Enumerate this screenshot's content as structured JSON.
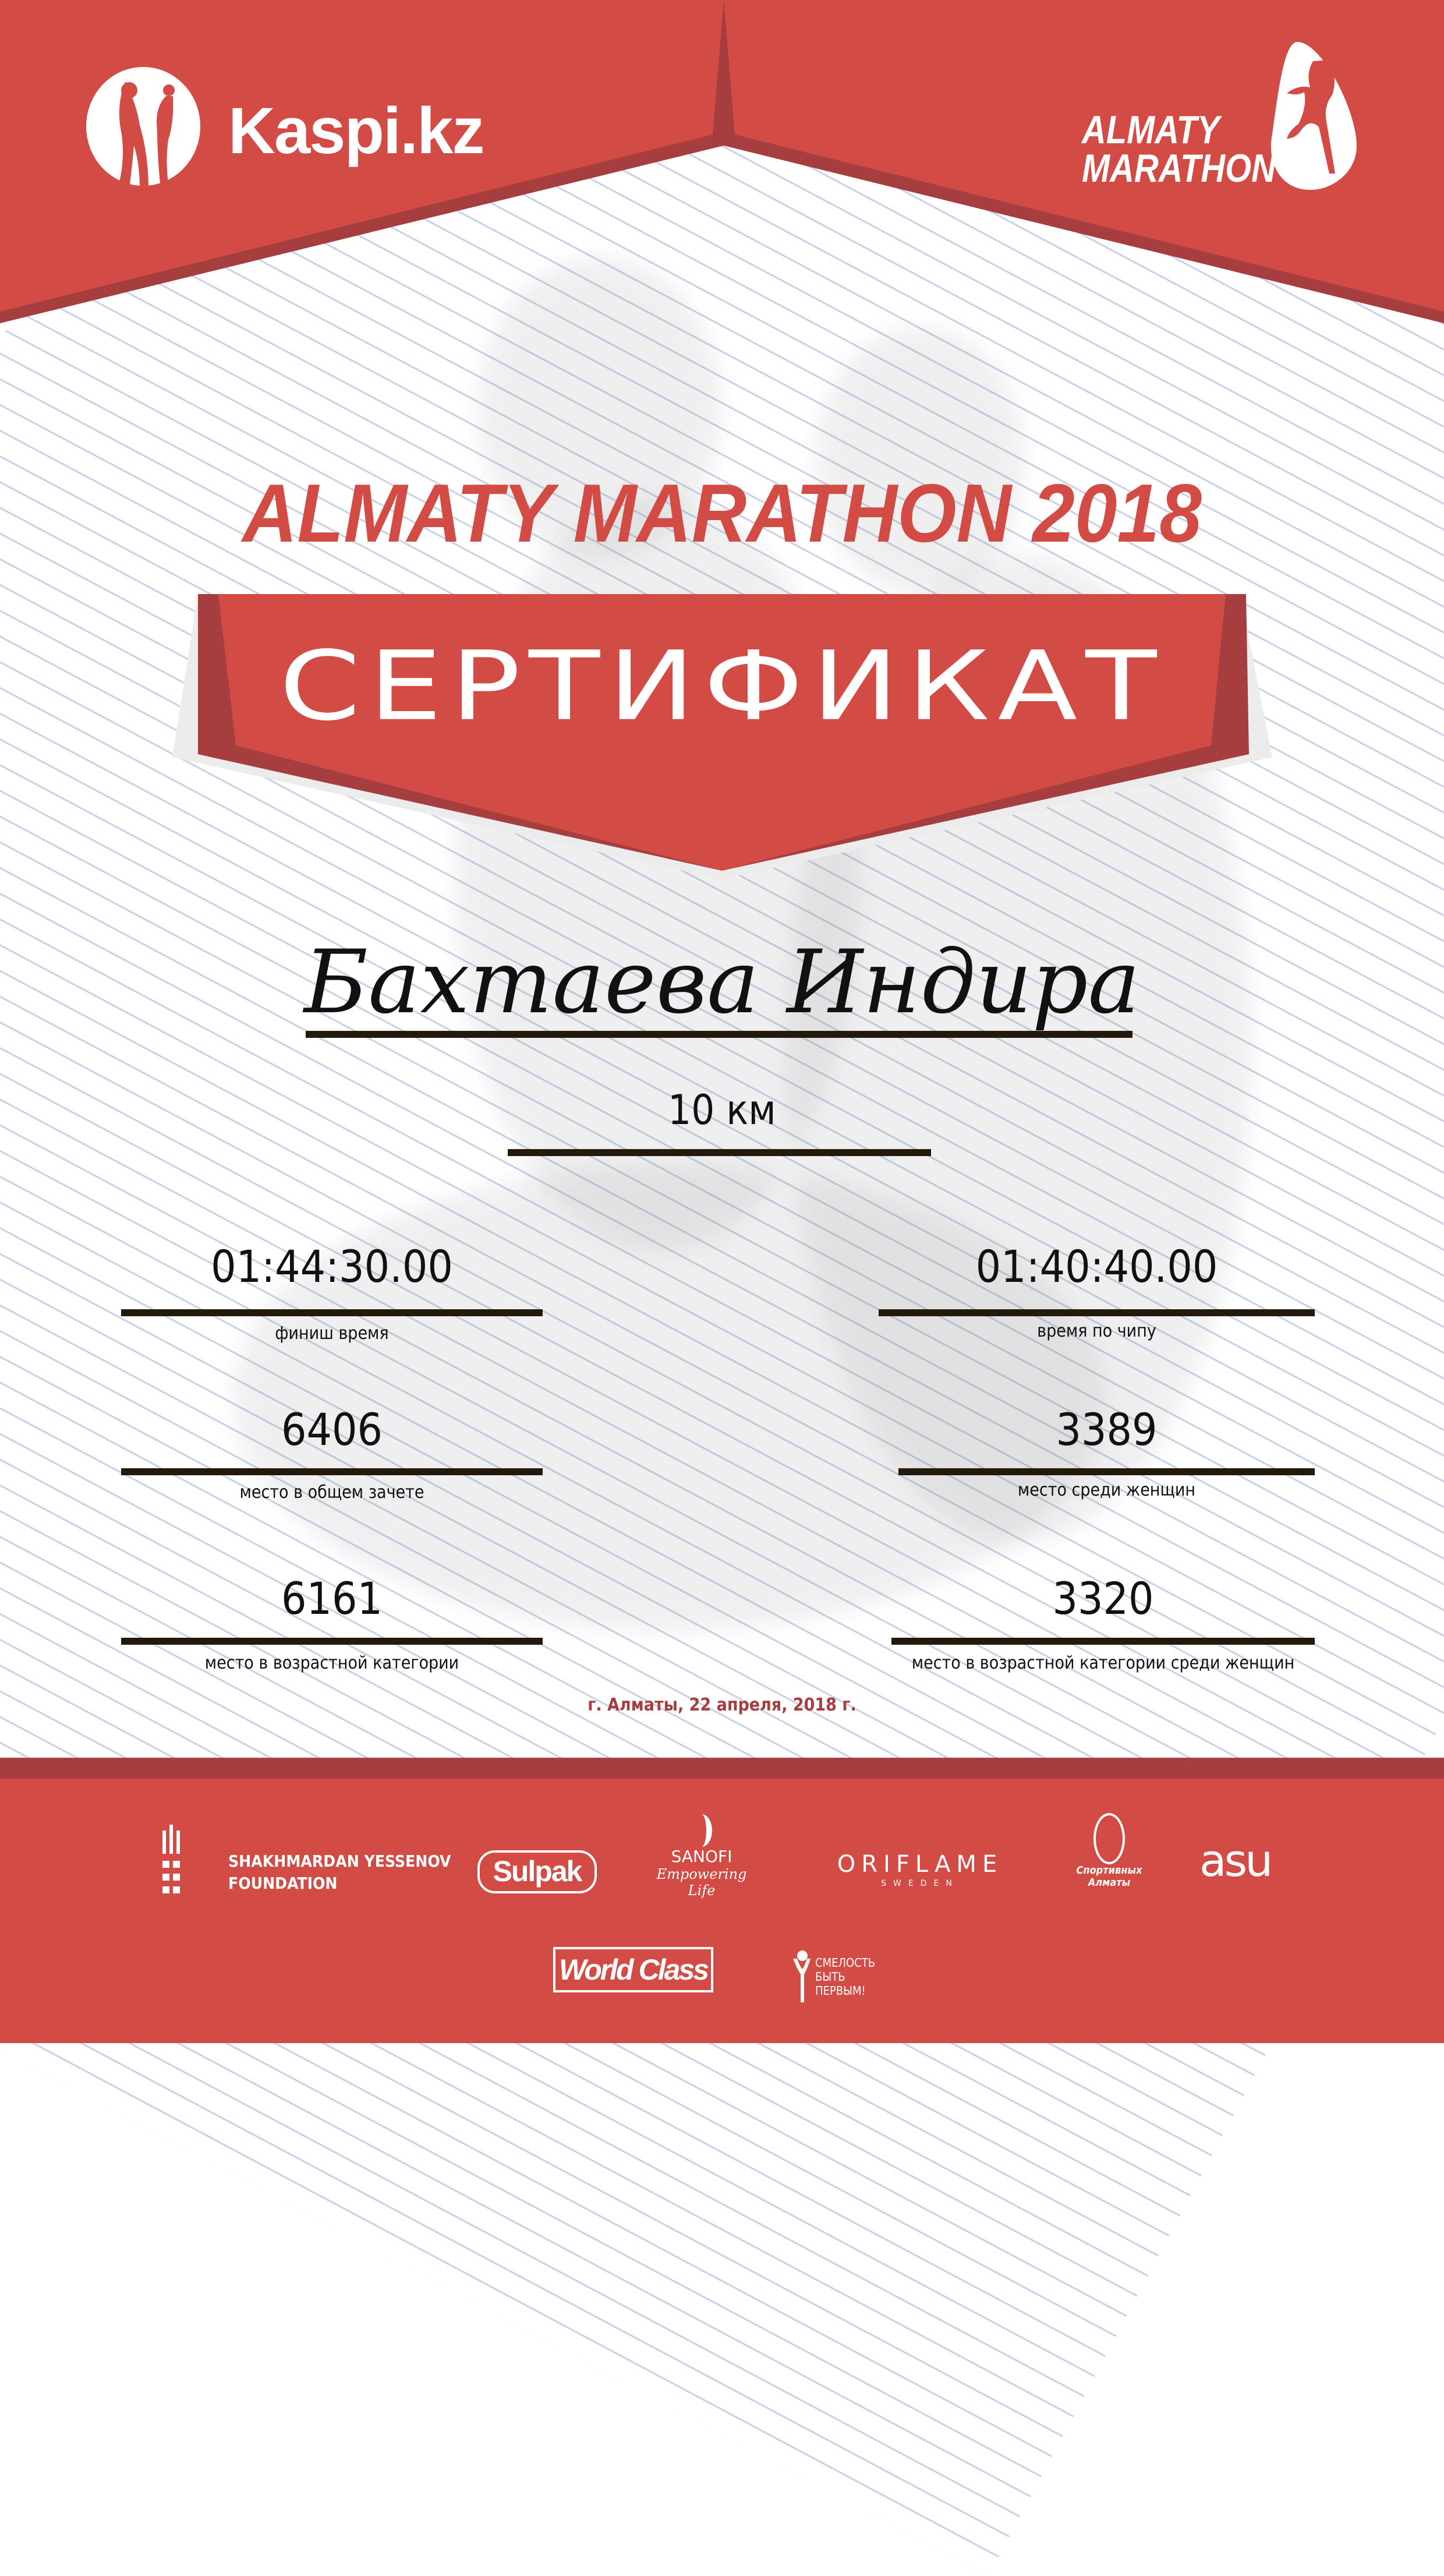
{
  "colors": {
    "brand_red": "#D24B45",
    "dark_red": "#A63E40",
    "rule": "#231A0B",
    "background_lines": "#C3CBE6"
  },
  "header": {
    "left_logo": {
      "text": "Kaspi.kz",
      "icon": "kaspi-people-icon"
    },
    "right_logo": {
      "line1": "ALMATY",
      "line2": "MARATHON",
      "icon": "runner-icon"
    }
  },
  "event_title": "ALMATY MARATHON 2018",
  "certificate_title": "СЕРТИФИКАТ",
  "participant_name": "Бахтаева Индира",
  "distance": "10 км",
  "results": [
    {
      "value": "01:44:30.00",
      "label": "финиш время"
    },
    {
      "value": "01:40:40.00",
      "label": "время по чипу"
    },
    {
      "value": "6406",
      "label": "место в общем зачете"
    },
    {
      "value": "3389",
      "label": "место среди женщин"
    },
    {
      "value": "6161",
      "label": "место в возрастной категории"
    },
    {
      "value": "3320",
      "label": "место в возрастной категории среди женщин"
    }
  ],
  "date_line": "г. Алматы, 22 апреля, 2018 г.",
  "sponsors": {
    "yessenov": {
      "line1": "SHAKHMARDAN YESSENOV",
      "line2": "FOUNDATION"
    },
    "sulpak": "Sulpak",
    "sanofi": {
      "name": "SANOFI",
      "tagline": "Empowering Life"
    },
    "oriflame": {
      "name": "ORIFLAME",
      "sub": "SWEDEN"
    },
    "sport_almaty": {
      "line1": "Спортивных",
      "line2": "Алматы"
    },
    "asu": "asu",
    "world_class": "World Class",
    "smelost": {
      "line1": "СМЕЛОСТЬ",
      "line2": "БЫТЬ",
      "line3": "ПЕРВЫМ!"
    }
  }
}
